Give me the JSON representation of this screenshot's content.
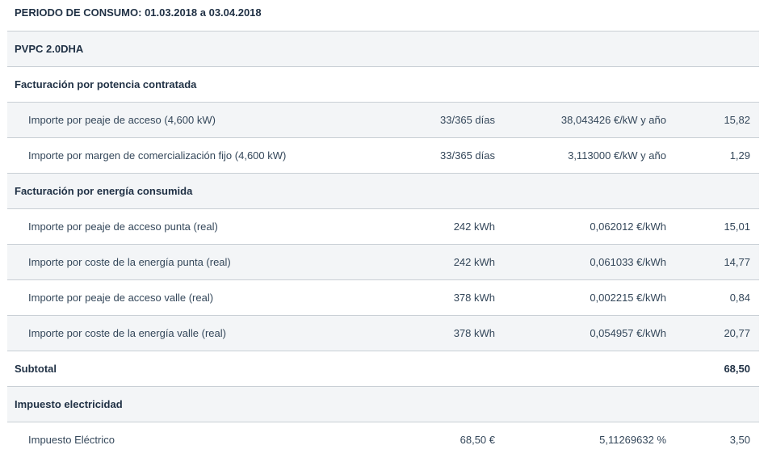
{
  "period": {
    "title": "PERIODO DE CONSUMO: 01.03.2018 a 03.04.2018"
  },
  "tariff": {
    "label": "PVPC 2.0DHA"
  },
  "power_section": {
    "title": "Facturación por potencia contratada",
    "rows": [
      {
        "description": "Importe por peaje de acceso (4,600 kW)",
        "quantity": "33/365 días",
        "price": "38,043426 €/kW y año",
        "amount": "15,82"
      },
      {
        "description": "Importe por margen de comercialización fijo (4,600 kW)",
        "quantity": "33/365 días",
        "price": "3,113000 €/kW y año",
        "amount": "1,29"
      }
    ]
  },
  "energy_section": {
    "title": "Facturación por energía consumida",
    "rows": [
      {
        "description": "Importe por peaje de acceso punta (real)",
        "quantity": "242 kWh",
        "price": "0,062012 €/kWh",
        "amount": "15,01"
      },
      {
        "description": "Importe por coste de la energía punta (real)",
        "quantity": "242 kWh",
        "price": "0,061033 €/kWh",
        "amount": "14,77"
      },
      {
        "description": "Importe por peaje de acceso valle (real)",
        "quantity": "378 kWh",
        "price": "0,002215 €/kWh",
        "amount": "0,84"
      },
      {
        "description": "Importe por coste de la energía valle (real)",
        "quantity": "378 kWh",
        "price": "0,054957 €/kWh",
        "amount": "20,77"
      }
    ]
  },
  "subtotal": {
    "label": "Subtotal",
    "amount": "68,50"
  },
  "tax_section": {
    "title": "Impuesto electricidad",
    "rows": [
      {
        "description": "Impuesto Eléctrico",
        "quantity": "68,50 €",
        "price": "5,11269632 %",
        "amount": "3,50"
      }
    ]
  }
}
